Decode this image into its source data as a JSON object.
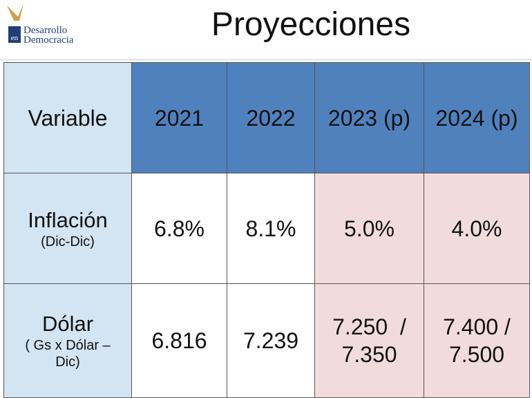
{
  "logo": {
    "badge": "en",
    "lines": [
      "Desarrollo",
      "Democracia"
    ]
  },
  "title": "Proyecciones",
  "table": {
    "header": [
      "Variable",
      "2021",
      "2022",
      "2023 (p)",
      "2024 (p)"
    ],
    "rows": [
      {
        "label": "Inflación",
        "note": [
          "(Dic-Dic)"
        ],
        "values": [
          [
            "6.8%"
          ],
          [
            "8.1%"
          ],
          [
            "5.0%"
          ],
          [
            "4.0%"
          ]
        ]
      },
      {
        "label": "Dólar",
        "note": [
          "( Gs x Dólar –",
          "Dic)"
        ],
        "values": [
          [
            "6.816"
          ],
          [
            "7.239"
          ],
          [
            "7.250  /",
            "7.350"
          ],
          [
            "7.400 /",
            "7.500"
          ]
        ]
      }
    ]
  }
}
